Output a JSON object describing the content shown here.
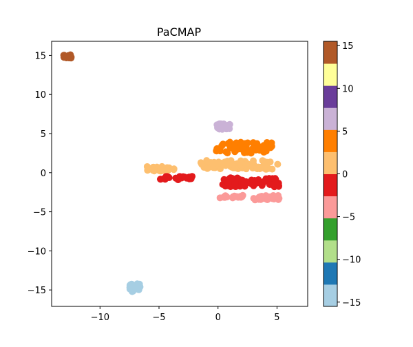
{
  "chart_data": {
    "type": "scatter",
    "title": "PaCMAP",
    "xlabel": "",
    "ylabel": "",
    "xlim": [
      -14.1,
      7.6
    ],
    "ylim": [
      -17.1,
      16.8
    ],
    "x_ticks": [
      -10,
      -5,
      0,
      5
    ],
    "x_tick_labels": [
      "−10",
      "−5",
      "0",
      "5"
    ],
    "y_ticks": [
      -15,
      -10,
      -5,
      0,
      5,
      10,
      15
    ],
    "y_tick_labels": [
      "−15",
      "−10",
      "−5",
      "0",
      "5",
      "10",
      "15"
    ],
    "grid": false,
    "colorbar": {
      "range": [
        -15.5,
        15.5
      ],
      "ticks": [
        -15,
        -10,
        -5,
        0,
        5,
        10,
        15
      ],
      "tick_labels": [
        "−15",
        "−10",
        "−5",
        "0",
        "5",
        "10",
        "15"
      ],
      "colors": [
        "#a6cee3",
        "#1f78b4",
        "#b2df8a",
        "#33a02c",
        "#fb9a99",
        "#e31a1c",
        "#fdbf6f",
        "#ff7f00",
        "#cab2d6",
        "#6a3d9a",
        "#ffff99",
        "#b15928"
      ]
    },
    "clusters": [
      {
        "color": "#b15928",
        "center": [
          -12.7,
          14.9
        ],
        "spread": [
          0.45,
          0.25
        ],
        "count": 14,
        "seed": 11
      },
      {
        "color": "#a6cee3",
        "center": [
          -7.0,
          -14.7
        ],
        "spread": [
          0.55,
          0.55
        ],
        "count": 22,
        "seed": 23
      },
      {
        "color": "#cab2d6",
        "center": [
          0.6,
          5.9
        ],
        "spread": [
          0.7,
          0.35
        ],
        "count": 26,
        "seed": 37
      },
      {
        "color": "#ff7f00",
        "center": [
          2.2,
          3.2
        ],
        "spread": [
          2.4,
          0.7
        ],
        "count": 60,
        "seed": 41
      },
      {
        "color": "#fdbf6f",
        "center": [
          1.8,
          1.0
        ],
        "spread": [
          3.3,
          0.6
        ],
        "count": 80,
        "seed": 53
      },
      {
        "color": "#fdbf6f",
        "center": [
          -4.8,
          0.5
        ],
        "spread": [
          1.2,
          0.3
        ],
        "count": 18,
        "seed": 59
      },
      {
        "color": "#e31a1c",
        "center": [
          -3.5,
          -0.7
        ],
        "spread": [
          1.5,
          0.25
        ],
        "count": 22,
        "seed": 61
      },
      {
        "color": "#e31a1c",
        "center": [
          2.8,
          -1.2
        ],
        "spread": [
          2.4,
          0.6
        ],
        "count": 70,
        "seed": 67
      },
      {
        "color": "#fb9a99",
        "center": [
          4.1,
          -3.2
        ],
        "spread": [
          1.1,
          0.3
        ],
        "count": 30,
        "seed": 71
      },
      {
        "color": "#fb9a99",
        "center": [
          1.1,
          -3.1
        ],
        "spread": [
          1.0,
          0.2
        ],
        "count": 18,
        "seed": 73
      }
    ]
  }
}
